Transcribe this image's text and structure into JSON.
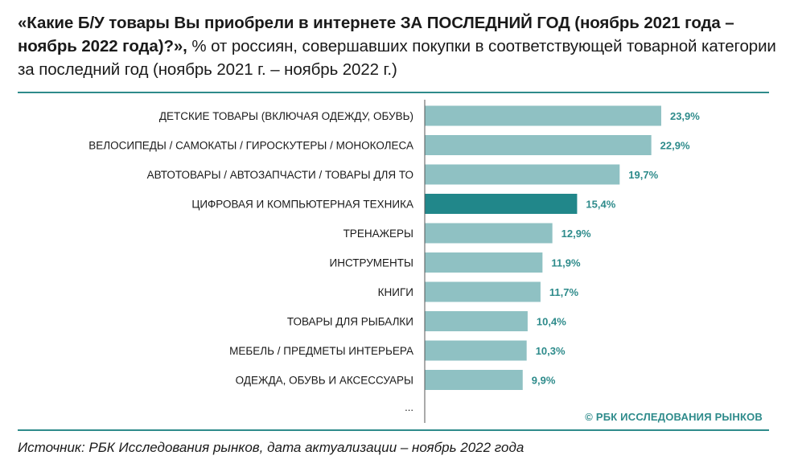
{
  "header": {
    "title_bold": "«Какие Б/У товары Вы приобрели в интернете ЗА ПОСЛЕДНИЙ ГОД (ноябрь 2021 года – ноябрь 2022 года)?»,",
    "title_rest": " % от россиян, совершавших покупки в соответствующей товарной категории за последний год (ноябрь 2021 г. – ноябрь 2022 г.)"
  },
  "chart_data": {
    "type": "bar",
    "orientation": "horizontal",
    "categories": [
      "ДЕТСКИЕ ТОВАРЫ (ВКЛЮЧАЯ ОДЕЖДУ, ОБУВЬ)",
      "ВЕЛОСИПЕДЫ / САМОКАТЫ / ГИРОСКУТЕРЫ / МОНОКОЛЕСА",
      "АВТОТОВАРЫ / АВТОЗАПЧАСТИ / ТОВАРЫ ДЛЯ ТО",
      "ЦИФРОВАЯ И КОМПЬЮТЕРНАЯ ТЕХНИКА",
      "ТРЕНАЖЕРЫ",
      "ИНСТРУМЕНТЫ",
      "КНИГИ",
      "ТОВАРЫ ДЛЯ РЫБАЛКИ",
      "МЕБЕЛЬ / ПРЕДМЕТЫ ИНТЕРЬЕРА",
      "ОДЕЖДА, ОБУВЬ И АКСЕССУАРЫ"
    ],
    "values": [
      23.9,
      22.9,
      19.7,
      15.4,
      12.9,
      11.9,
      11.7,
      10.4,
      10.3,
      9.9
    ],
    "value_labels": [
      "23,9%",
      "22,9%",
      "19,7%",
      "15,4%",
      "12,9%",
      "11,9%",
      "11,7%",
      "10,4%",
      "10,3%",
      "9,9%"
    ],
    "highlight_index": 3,
    "trailing_label": "...",
    "colors": {
      "bar": "#8fc1c3",
      "highlight": "#21878a",
      "value_text": "#2e8b8b",
      "axis": "#555555"
    }
  },
  "watermark": "© РБК ИССЛЕДОВАНИЯ РЫНКОВ",
  "source": "Источник: РБК Исследования рынков, дата актуализации – ноябрь 2022 года"
}
